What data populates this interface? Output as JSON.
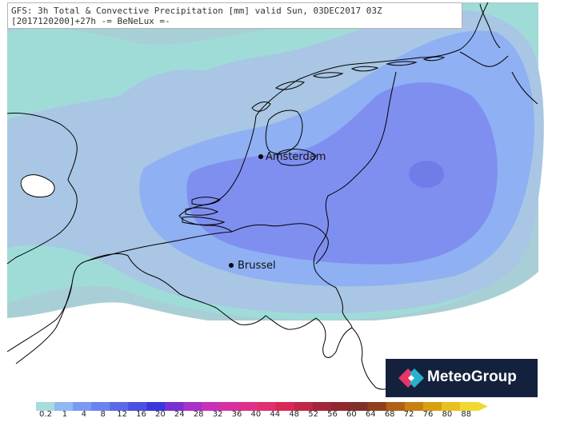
{
  "header": {
    "line1": "GFS: 3h Total & Convective Precipitation [mm] valid Sun, 03DEC2017 03Z",
    "line2": "[2017120200]+27h -= BeNeLux =-"
  },
  "cities": {
    "amsterdam": "Amsterdam",
    "brussel": "Brussel"
  },
  "logo": {
    "text": "MeteoGroup",
    "colors": [
      "#e8336b",
      "#26b3c9",
      "#ffffff"
    ]
  },
  "legend": {
    "labels": [
      "0.2",
      "1",
      "4",
      "8",
      "12",
      "16",
      "20",
      "24",
      "28",
      "32",
      "36",
      "40",
      "44",
      "48",
      "52",
      "56",
      "60",
      "64",
      "68",
      "72",
      "76",
      "80",
      "88"
    ],
    "colors": [
      "#a8dcdc",
      "#8fb8f4",
      "#7a9af2",
      "#6b82f0",
      "#5a6ae8",
      "#4a52e0",
      "#3a38d8",
      "#7a30d0",
      "#a830c8",
      "#c830b8",
      "#d830a0",
      "#e0308a",
      "#e03070",
      "#d82858",
      "#c02848",
      "#a02838",
      "#902830",
      "#803028",
      "#904020",
      "#b06018",
      "#c88010",
      "#d8a010",
      "#e8c020",
      "#f0d830"
    ]
  },
  "field": {
    "colors": {
      "outer": "#a9cfd6",
      "teal": "#9fdcd8",
      "light": "#a9c6e4",
      "mid": "#8fb0f3",
      "core": "#7f8ff0",
      "peak": "#707de9"
    }
  }
}
